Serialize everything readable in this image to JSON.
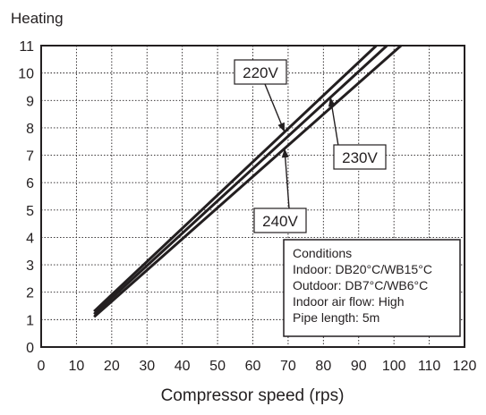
{
  "chart_data": {
    "type": "line",
    "title": "Heating",
    "xlabel": "Compressor speed (rps)",
    "ylabel": "",
    "xlim": [
      0,
      120
    ],
    "ylim": [
      0,
      11
    ],
    "xticks": [
      0,
      10,
      20,
      30,
      40,
      50,
      60,
      70,
      80,
      90,
      100,
      110,
      120
    ],
    "yticks": [
      0,
      1,
      2,
      3,
      4,
      5,
      6,
      7,
      8,
      9,
      10,
      11
    ],
    "grid": true,
    "series": [
      {
        "name": "220V",
        "x": [
          15,
          95
        ],
        "y": [
          1.3,
          11.0
        ]
      },
      {
        "name": "230V",
        "x": [
          15,
          98
        ],
        "y": [
          1.2,
          11.0
        ]
      },
      {
        "name": "240V",
        "x": [
          15,
          102
        ],
        "y": [
          1.1,
          11.0
        ]
      }
    ],
    "annotations": {
      "callouts": [
        "220V",
        "230V",
        "240V"
      ],
      "conditions": [
        "Conditions",
        "Indoor: DB20°C/WB15°C",
        "Outdoor: DB7°C/WB6°C",
        "Indoor air flow: High",
        "Pipe length: 5m"
      ]
    },
    "colors": {
      "line": "#231f20",
      "grid": "#231f20",
      "background": "#ffffff"
    }
  }
}
